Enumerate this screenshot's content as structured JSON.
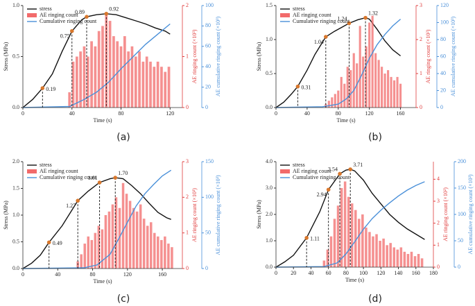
{
  "chart_data": [
    {
      "type": "combo",
      "label": "(a)",
      "xlabel": "Time (s)",
      "ylabel": "Stress (MPa)",
      "y2label": "AE ringing count (×10³)",
      "y3label": "AE cumulative ringing count (×10³)",
      "xlim": [
        0,
        130
      ],
      "xticks": [
        0,
        40,
        80,
        120
      ],
      "ylim": [
        0,
        1.0
      ],
      "yticks": [
        {
          "value": 0,
          "label": "0.0"
        },
        {
          "value": 0.5,
          "label": "0.5"
        },
        {
          "value": 1.0,
          "label": "1.0"
        }
      ],
      "y2lim": [
        0,
        2
      ],
      "y2ticks": [
        0,
        1,
        2
      ],
      "y3lim": [
        0,
        100
      ],
      "y3ticks": [
        0,
        20,
        40,
        60,
        80,
        100
      ],
      "series": [
        {
          "name": "stress",
          "color": "#111111",
          "mark": "line",
          "x": [
            0,
            8,
            16,
            24,
            32,
            40,
            48,
            52,
            60,
            68,
            76,
            84,
            92,
            100,
            108,
            116,
            120
          ],
          "values": [
            0,
            0.08,
            0.19,
            0.33,
            0.55,
            0.75,
            0.86,
            0.89,
            0.91,
            0.92,
            0.91,
            0.88,
            0.85,
            0.82,
            0.78,
            0.75,
            0.72
          ]
        },
        {
          "name": "AE ringing count",
          "color": "#f26b6b",
          "mark": "bar",
          "axis": "y2",
          "x": [
            38,
            41,
            44,
            47,
            50,
            53,
            56,
            59,
            62,
            65,
            68,
            71,
            74,
            77,
            80,
            83,
            86,
            89,
            92,
            95,
            98,
            101,
            104,
            107,
            110,
            113,
            116,
            119
          ],
          "values": [
            0.3,
            0.9,
            1.0,
            1.1,
            1.2,
            1.0,
            1.3,
            1.2,
            1.5,
            1.6,
            1.85,
            1.7,
            1.4,
            1.3,
            1.2,
            1.4,
            1.1,
            1.2,
            1.0,
            1.1,
            0.9,
            1.0,
            0.9,
            0.8,
            0.9,
            0.8,
            0.7,
            0.8
          ]
        },
        {
          "name": "Cumulative ringing count",
          "color": "#4a90d9",
          "mark": "line",
          "axis": "y3",
          "x": [
            0,
            38,
            50,
            60,
            70,
            80,
            90,
            100,
            110,
            120
          ],
          "values": [
            0,
            1,
            8,
            15,
            25,
            38,
            50,
            62,
            72,
            82
          ]
        }
      ],
      "points": {
        "color": "#d9782d",
        "x": [
          16,
          40,
          52,
          68
        ],
        "values": [
          0.19,
          0.75,
          0.89,
          0.92
        ]
      }
    },
    {
      "type": "combo",
      "label": "(b)",
      "xlabel": "Time (s)",
      "ylabel": "Stress (MPa)",
      "y2label": "AE ringing count (×10²)",
      "y3label": "AE cumulative ringing count (×10³)",
      "xlim": [
        0,
        180
      ],
      "xticks": [
        0,
        40,
        80,
        120,
        160
      ],
      "ylim": [
        0,
        1.5
      ],
      "yticks": [
        {
          "value": 0,
          "label": "0.0"
        },
        {
          "value": 0.5,
          "label": "0.5"
        },
        {
          "value": 1.0,
          "label": "1.0"
        },
        {
          "value": 1.5,
          "label": "1.5"
        }
      ],
      "y2lim": [
        0,
        3
      ],
      "y2ticks": [
        0,
        1,
        2,
        3
      ],
      "y3lim": [
        0,
        120
      ],
      "y3ticks": [
        0,
        20,
        40,
        60,
        80,
        100,
        120
      ],
      "series": [
        {
          "name": "stress",
          "color": "#111111",
          "mark": "line",
          "x": [
            0,
            10,
            20,
            28,
            40,
            50,
            64,
            75,
            94,
            105,
            115,
            120,
            130,
            140,
            150,
            160
          ],
          "values": [
            0,
            0.08,
            0.2,
            0.31,
            0.55,
            0.78,
            1.04,
            1.12,
            1.24,
            1.29,
            1.32,
            1.3,
            1.15,
            0.98,
            0.85,
            0.76
          ]
        },
        {
          "name": "AE ringing count",
          "color": "#f26b6b",
          "mark": "bar",
          "axis": "y2",
          "x": [
            64,
            68,
            72,
            76,
            80,
            84,
            88,
            92,
            96,
            100,
            104,
            108,
            112,
            116,
            120,
            124,
            128,
            132,
            136,
            140,
            144,
            148,
            152,
            156,
            160
          ],
          "values": [
            0.1,
            0.2,
            0.3,
            0.4,
            0.5,
            0.9,
            0.7,
            1.2,
            1.1,
            1.6,
            1.3,
            2.4,
            1.5,
            1.8,
            2.5,
            2.7,
            1.6,
            1.4,
            1.2,
            1.0,
            1.1,
            0.9,
            0.8,
            0.9,
            0.7
          ]
        },
        {
          "name": "Cumulative ringing count",
          "color": "#4a90d9",
          "mark": "line",
          "axis": "y3",
          "x": [
            0,
            60,
            80,
            90,
            100,
            110,
            120,
            130,
            140,
            150,
            160
          ],
          "values": [
            0,
            1,
            4,
            10,
            20,
            38,
            58,
            74,
            86,
            96,
            104
          ]
        }
      ],
      "points": {
        "color": "#d9782d",
        "x": [
          28,
          64,
          94,
          115
        ],
        "values": [
          0.31,
          1.04,
          1.24,
          1.32
        ]
      }
    },
    {
      "type": "combo",
      "label": "(c)",
      "xlabel": "Time (s)",
      "ylabel": "Stress (MPa)",
      "y2label": "AE ringing count (×10³)",
      "y3label": "AE cumulative ringing count (×10³)",
      "xlim": [
        0,
        183
      ],
      "xticks": [
        0,
        40,
        80,
        120,
        160
      ],
      "ylim": [
        0,
        2.0
      ],
      "yticks": [
        {
          "value": 0,
          "label": "0.0"
        },
        {
          "value": 0.5,
          "label": "0.5"
        },
        {
          "value": 1.0,
          "label": "1.0"
        },
        {
          "value": 1.5,
          "label": "1.5"
        },
        {
          "value": 2.0,
          "label": "2.0"
        }
      ],
      "y2lim": [
        0,
        3
      ],
      "y2ticks": [
        0,
        1,
        2,
        3
      ],
      "y3lim": [
        0,
        150
      ],
      "y3ticks": [
        0,
        50,
        100,
        150
      ],
      "series": [
        {
          "name": "stress",
          "color": "#111111",
          "mark": "line",
          "x": [
            0,
            10,
            20,
            30,
            45,
            63,
            75,
            88,
            100,
            106,
            115,
            125,
            135,
            145,
            155,
            165,
            170
          ],
          "values": [
            0,
            0.1,
            0.25,
            0.49,
            0.8,
            1.27,
            1.45,
            1.61,
            1.68,
            1.7,
            1.68,
            1.55,
            1.4,
            1.22,
            1.05,
            0.95,
            0.92
          ]
        },
        {
          "name": "AE ringing count",
          "color": "#f26b6b",
          "mark": "bar",
          "axis": "y2",
          "x": [
            63,
            67,
            71,
            75,
            79,
            83,
            87,
            91,
            95,
            99,
            103,
            107,
            111,
            115,
            119,
            123,
            127,
            131,
            135,
            139,
            143,
            147,
            151,
            155,
            159,
            163,
            167,
            171
          ],
          "values": [
            0.2,
            0.4,
            0.7,
            0.9,
            0.8,
            1.0,
            1.2,
            1.1,
            1.5,
            1.6,
            1.8,
            2.0,
            1.7,
            2.4,
            2.1,
            1.9,
            1.7,
            1.6,
            1.8,
            1.4,
            1.2,
            1.3,
            1.0,
            0.9,
            0.8,
            0.9,
            0.7,
            0.6
          ]
        },
        {
          "name": "Cumulative ringing count",
          "color": "#4a90d9",
          "mark": "line",
          "axis": "y3",
          "x": [
            0,
            70,
            85,
            100,
            110,
            120,
            130,
            140,
            150,
            160,
            170
          ],
          "values": [
            0,
            1,
            5,
            20,
            42,
            65,
            88,
            105,
            118,
            130,
            138
          ]
        }
      ],
      "points": {
        "color": "#d9782d",
        "x": [
          30,
          63,
          88,
          106
        ],
        "values": [
          0.49,
          1.27,
          1.61,
          1.7
        ],
        "value_labels": [
          "0.49",
          "1.27",
          "1.61",
          "1.70"
        ]
      }
    },
    {
      "type": "combo",
      "label": "(d)",
      "xlabel": "Time (s)",
      "ylabel": "Stress (MPa)",
      "y2label": "AE ringing count (×10²)",
      "y3label": "AE cumulative ringing count (×10³)",
      "xlim": [
        0,
        180
      ],
      "xticks": [
        0,
        20,
        40,
        60,
        80,
        100,
        120,
        140,
        160,
        180
      ],
      "ylim": [
        0,
        4.0
      ],
      "yticks": [
        {
          "value": 0,
          "label": "0.0"
        },
        {
          "value": 1.0,
          "label": "1.0"
        },
        {
          "value": 2.0,
          "label": "2.0"
        },
        {
          "value": 3.0,
          "label": "3.0"
        },
        {
          "value": 4.0,
          "label": "4.0"
        }
      ],
      "y2lim": [
        0,
        4.8
      ],
      "y2ticks": [
        0,
        1,
        2,
        3,
        4
      ],
      "y3lim": [
        0,
        200
      ],
      "y3ticks": [
        0,
        50,
        100,
        150,
        200
      ],
      "series": [
        {
          "name": "stress",
          "color": "#111111",
          "mark": "line",
          "x": [
            0,
            10,
            20,
            35,
            50,
            60,
            73,
            80,
            85,
            90,
            100,
            110,
            120,
            130,
            140,
            150,
            160,
            170
          ],
          "values": [
            0,
            0.2,
            0.45,
            1.11,
            2.1,
            2.94,
            3.54,
            3.68,
            3.71,
            3.65,
            3.3,
            2.8,
            2.4,
            2.0,
            1.7,
            1.45,
            1.25,
            1.05
          ]
        },
        {
          "name": "AE ringing count",
          "color": "#f26b6b",
          "mark": "bar",
          "axis": "y2",
          "x": [
            55,
            59,
            63,
            67,
            71,
            75,
            79,
            83,
            87,
            91,
            95,
            99,
            103,
            107,
            111,
            115,
            119,
            123,
            127,
            131,
            135,
            139,
            143,
            147,
            151,
            155,
            159,
            163,
            167
          ],
          "values": [
            0.3,
            0.8,
            1.4,
            2.2,
            2.8,
            3.6,
            3.9,
            3.2,
            2.9,
            2.6,
            2.2,
            2.4,
            1.8,
            1.6,
            1.4,
            1.5,
            1.2,
            1.3,
            1.0,
            1.1,
            0.9,
            0.8,
            0.9,
            0.7,
            0.6,
            0.7,
            0.5,
            0.6,
            0.4
          ]
        },
        {
          "name": "Cumulative ringing count",
          "color": "#4a90d9",
          "mark": "line",
          "axis": "y3",
          "x": [
            0,
            55,
            70,
            80,
            90,
            100,
            110,
            120,
            130,
            140,
            150,
            160,
            170
          ],
          "values": [
            0,
            1,
            8,
            25,
            48,
            72,
            92,
            108,
            122,
            135,
            146,
            155,
            162
          ]
        }
      ],
      "points": {
        "color": "#d9782d",
        "x": [
          35,
          60,
          73,
          85
        ],
        "values": [
          1.11,
          2.94,
          3.54,
          3.71
        ]
      }
    }
  ]
}
